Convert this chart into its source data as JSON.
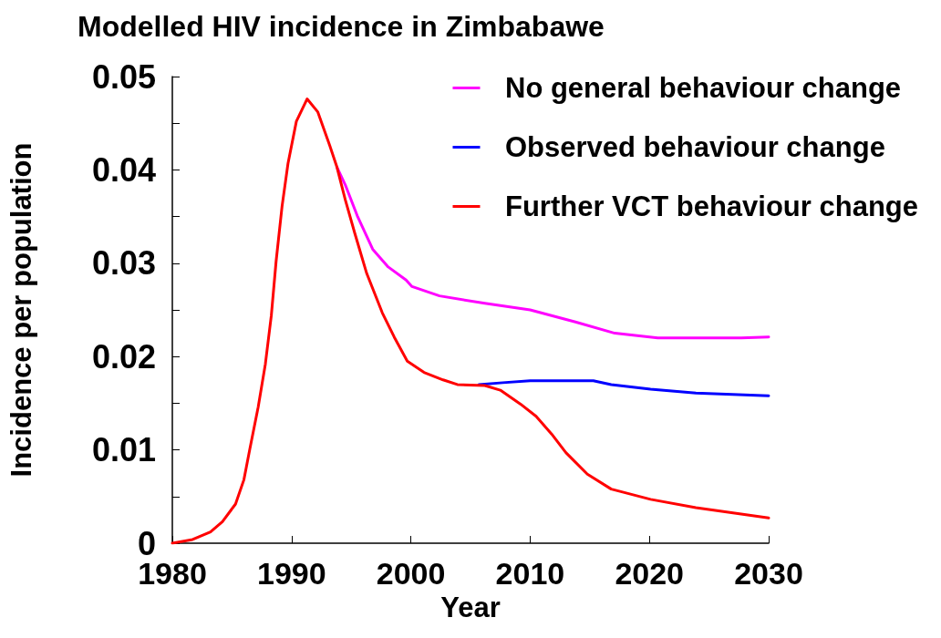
{
  "chart_data": {
    "type": "line",
    "title": "Modelled HIV incidence in Zimbabawe",
    "xlabel": "Year",
    "ylabel": "Incidence per population",
    "xlim": [
      1980,
      2030
    ],
    "xticks": [
      1980,
      1990,
      2000,
      2010,
      2020,
      2030
    ],
    "ylim": [
      0,
      0.05
    ],
    "yticks": [
      0,
      {
        "value": 0.005,
        "label": null
      },
      0.01,
      {
        "value": 0.015,
        "label": null
      },
      0.02,
      {
        "value": 0.025,
        "label": null
      },
      0.03,
      {
        "value": 0.035,
        "label": null
      },
      0.04,
      {
        "value": 0.045,
        "label": null
      },
      0.05
    ],
    "grid": false,
    "legend": "top right",
    "marker": "none",
    "line_style": "solid",
    "series": [
      {
        "name": "No general behaviour change",
        "color": "#ff00ff",
        "x": [
          1993.8,
          1994.5,
          1995.5,
          1996.8,
          1998.1,
          1999.6,
          2000.1,
          2002.4,
          2006.2,
          2010.0,
          2013.8,
          2017.1,
          2020.7,
          2027.7,
          2030
        ],
        "values": [
          0.0403,
          0.0384,
          0.0351,
          0.0315,
          0.0296,
          0.0282,
          0.0275,
          0.0265,
          0.0257,
          0.025,
          0.0237,
          0.0225,
          0.022,
          0.022,
          0.0221
        ]
      },
      {
        "name": "Observed behaviour change",
        "color": "#0000ff",
        "x": [
          2005.7,
          2007.7,
          2010,
          2015.3,
          2016.8,
          2020.1,
          2023.9,
          2030
        ],
        "values": [
          0.017,
          0.0172,
          0.0174,
          0.0174,
          0.017,
          0.0165,
          0.0161,
          0.0158
        ]
      },
      {
        "name": "Further VCT behaviour change",
        "color": "#ff0000",
        "x": [
          1980,
          1981.7,
          1983.2,
          1984.2,
          1985.3,
          1986.0,
          1986.5,
          1987.2,
          1987.8,
          1988.3,
          1988.7,
          1989.2,
          1989.7,
          1990.4,
          1991.3,
          1992.2,
          1993.2,
          1993.8,
          1994.5,
          1995.3,
          1996.3,
          1997.6,
          1998.6,
          1999.7,
          2001.1,
          2002.7,
          2003.9,
          2006.2,
          2007.5,
          2009.2,
          2010.5,
          2011.8,
          2013.0,
          2014.8,
          2016.8,
          2020.1,
          2023.9,
          2030
        ],
        "values": [
          0,
          0.0004,
          0.0012,
          0.0023,
          0.0042,
          0.0068,
          0.0101,
          0.0146,
          0.0192,
          0.0244,
          0.0302,
          0.0361,
          0.0407,
          0.0452,
          0.0476,
          0.0462,
          0.0426,
          0.0403,
          0.0368,
          0.0332,
          0.0289,
          0.0247,
          0.0221,
          0.0195,
          0.0183,
          0.0175,
          0.017,
          0.0169,
          0.0164,
          0.0149,
          0.0136,
          0.0117,
          0.0097,
          0.0074,
          0.0058,
          0.0047,
          0.0038,
          0.0027
        ]
      }
    ]
  }
}
